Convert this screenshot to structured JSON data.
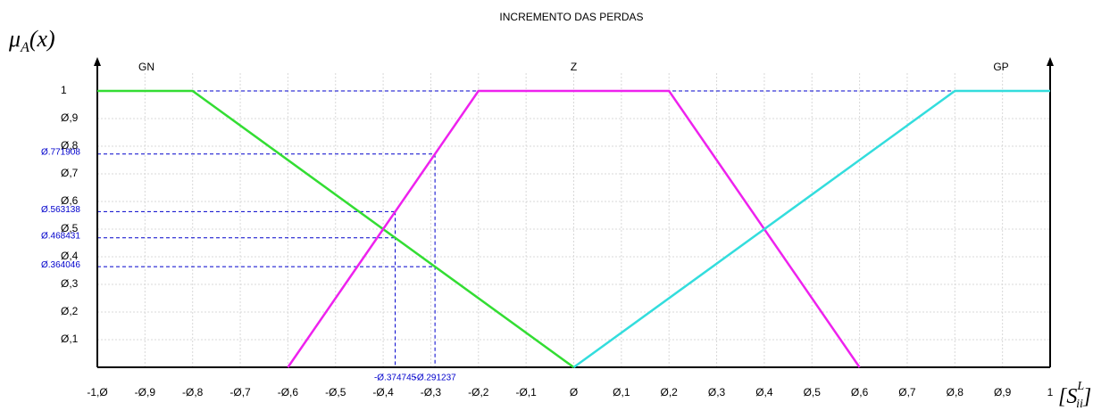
{
  "chart_data": {
    "type": "line",
    "title": "INCREMENTO DAS PERDAS",
    "y_label": {
      "base": "μ",
      "sub": "A",
      "rest": "(x)"
    },
    "x_label": {
      "open": "[S",
      "sub": "ii",
      "sup": "L",
      "close": "]"
    },
    "xlim": [
      -1,
      1
    ],
    "ylim": [
      0,
      1
    ],
    "grid": true,
    "xticks": [
      {
        "value": -1,
        "label": "-1,Ø"
      },
      {
        "value": -0.9,
        "label": "-Ø,9"
      },
      {
        "value": -0.8,
        "label": "-Ø,8"
      },
      {
        "value": -0.7,
        "label": "-Ø,7"
      },
      {
        "value": -0.6,
        "label": "-Ø,6"
      },
      {
        "value": -0.5,
        "label": "-Ø,5"
      },
      {
        "value": -0.4,
        "label": "-Ø,4"
      },
      {
        "value": -0.3,
        "label": "-Ø,3"
      },
      {
        "value": -0.2,
        "label": "-Ø,2"
      },
      {
        "value": -0.1,
        "label": "-Ø,1"
      },
      {
        "value": 0,
        "label": "Ø"
      },
      {
        "value": 0.1,
        "label": "Ø,1"
      },
      {
        "value": 0.2,
        "label": "Ø,2"
      },
      {
        "value": 0.3,
        "label": "Ø,3"
      },
      {
        "value": 0.4,
        "label": "Ø,4"
      },
      {
        "value": 0.5,
        "label": "Ø,5"
      },
      {
        "value": 0.6,
        "label": "Ø,6"
      },
      {
        "value": 0.7,
        "label": "Ø,7"
      },
      {
        "value": 0.8,
        "label": "Ø,8"
      },
      {
        "value": 0.9,
        "label": "Ø,9"
      },
      1
    ],
    "yticks": [
      {
        "value": 0.1,
        "label": "Ø,1"
      },
      {
        "value": 0.2,
        "label": "Ø,2"
      },
      {
        "value": 0.3,
        "label": "Ø,3"
      },
      {
        "value": 0.4,
        "label": "Ø,4"
      },
      {
        "value": 0.5,
        "label": "Ø,5"
      },
      {
        "value": 0.6,
        "label": "Ø,6"
      },
      {
        "value": 0.7,
        "label": "Ø,7"
      },
      {
        "value": 0.8,
        "label": "Ø,8"
      },
      {
        "value": 0.9,
        "label": "Ø,9"
      },
      1
    ],
    "series": [
      {
        "name": "GN",
        "color": "#33dd33",
        "x": [
          -1,
          -0.8,
          0
        ],
        "values": [
          1,
          1,
          0
        ]
      },
      {
        "name": "Z",
        "color": "#ee22ee",
        "x": [
          -0.6,
          -0.2,
          0.2,
          0.6
        ],
        "values": [
          0,
          1,
          1,
          0
        ]
      },
      {
        "name": "GP",
        "color": "#33dddd",
        "x": [
          0,
          0.8,
          1
        ],
        "values": [
          0,
          1,
          1
        ]
      }
    ],
    "guides": [
      {
        "x": {
          "value": -0.374745,
          "label": "-Ø.374745"
        },
        "y": [
          {
            "value": 0.563138,
            "label": "Ø.563138"
          },
          {
            "value": 0.468431,
            "label": "Ø.468431"
          }
        ]
      },
      {
        "x": {
          "value": -0.291237,
          "label": "-Ø.291237"
        },
        "y": [
          {
            "value": 0.771908,
            "label": "Ø.771908"
          },
          {
            "value": 0.364046,
            "label": "Ø.364046"
          }
        ]
      }
    ]
  }
}
